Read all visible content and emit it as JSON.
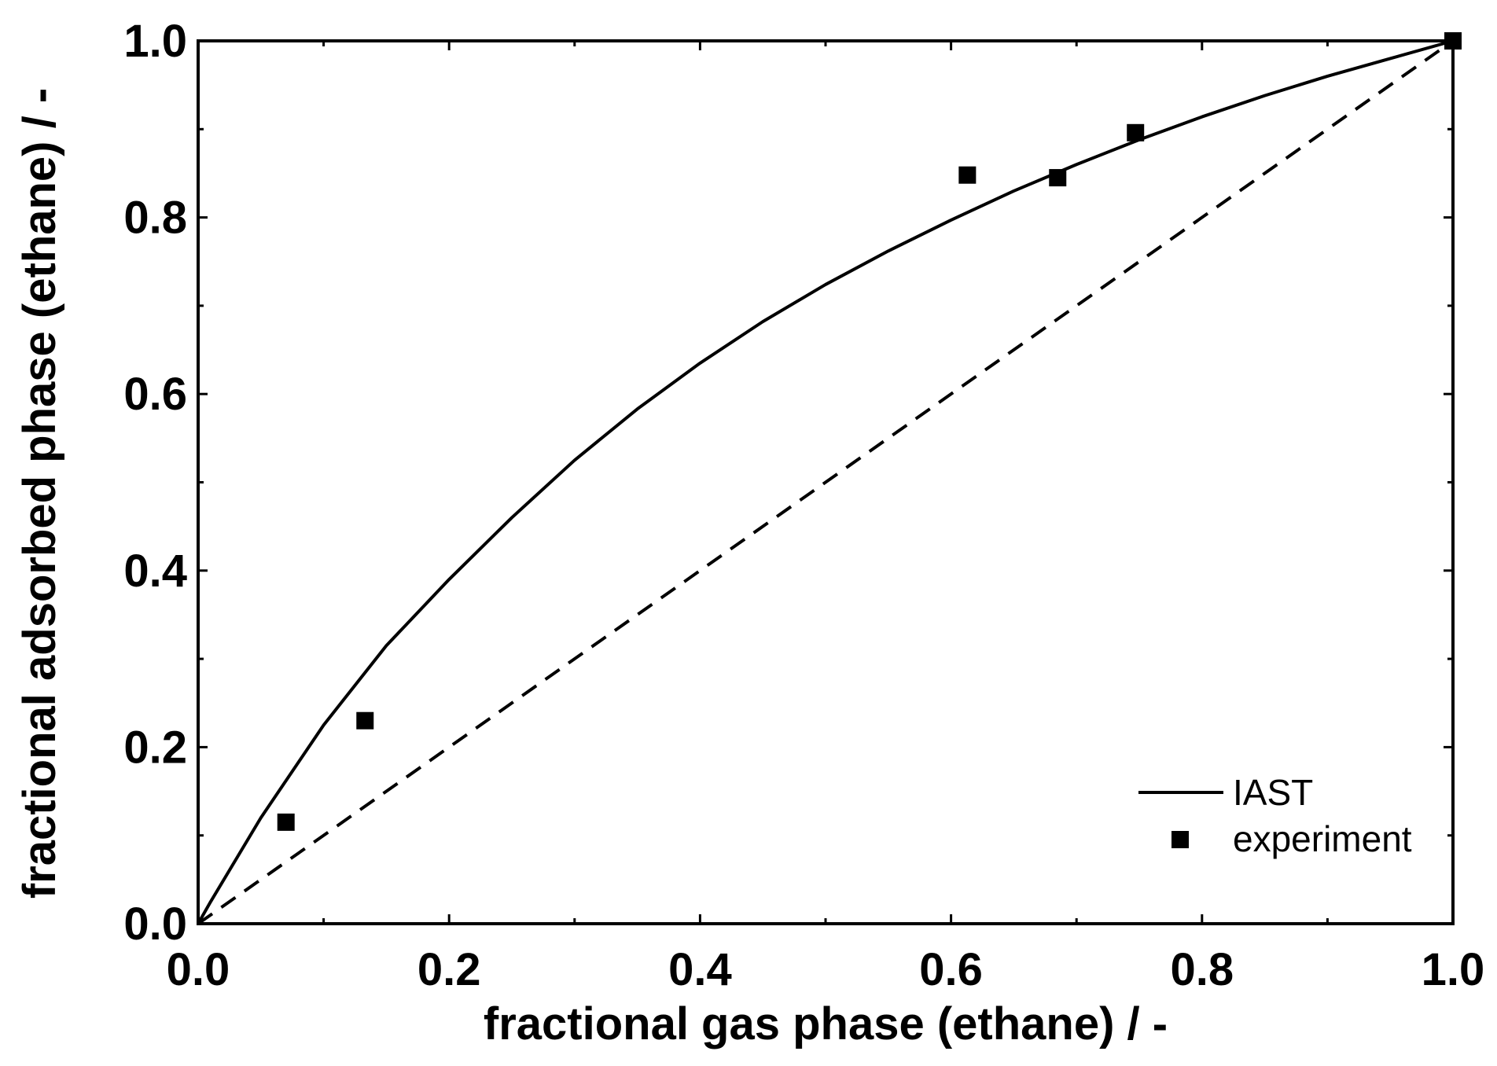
{
  "chart_data": {
    "type": "scatter",
    "title": "",
    "xlabel": "fractional gas phase (ethane) / -",
    "ylabel": "fractional adsorbed phase (ethane) / -",
    "xlim": [
      0.0,
      1.0
    ],
    "ylim": [
      0.0,
      1.0
    ],
    "x_ticks": [
      "0.0",
      "0.2",
      "0.4",
      "0.6",
      "0.8",
      "1.0"
    ],
    "y_ticks": [
      "0.0",
      "0.2",
      "0.4",
      "0.6",
      "0.8",
      "1.0"
    ],
    "grid": false,
    "legend_position": "bottom-right",
    "series": [
      {
        "name": "IAST",
        "style": "solid-line",
        "x": [
          0.0,
          0.01,
          0.05,
          0.1,
          0.15,
          0.2,
          0.25,
          0.3,
          0.35,
          0.4,
          0.45,
          0.5,
          0.55,
          0.6,
          0.65,
          0.7,
          0.75,
          0.8,
          0.85,
          0.9,
          0.95,
          1.0
        ],
        "y": [
          0.0,
          0.025,
          0.12,
          0.225,
          0.315,
          0.39,
          0.46,
          0.525,
          0.583,
          0.635,
          0.682,
          0.724,
          0.762,
          0.797,
          0.83,
          0.86,
          0.888,
          0.914,
          0.938,
          0.96,
          0.98,
          1.0
        ]
      },
      {
        "name": "experiment",
        "style": "square-marker",
        "x": [
          0.07,
          0.133,
          0.613,
          0.685,
          0.747,
          1.0
        ],
        "y": [
          0.115,
          0.23,
          0.848,
          0.845,
          0.896,
          1.0
        ]
      },
      {
        "name": "",
        "style": "dashed-line",
        "x": [
          0.0,
          1.0
        ],
        "y": [
          0.0,
          1.0
        ]
      }
    ],
    "legend": [
      {
        "label": "IAST",
        "symbol": "line"
      },
      {
        "label": "experiment",
        "symbol": "square"
      }
    ]
  }
}
